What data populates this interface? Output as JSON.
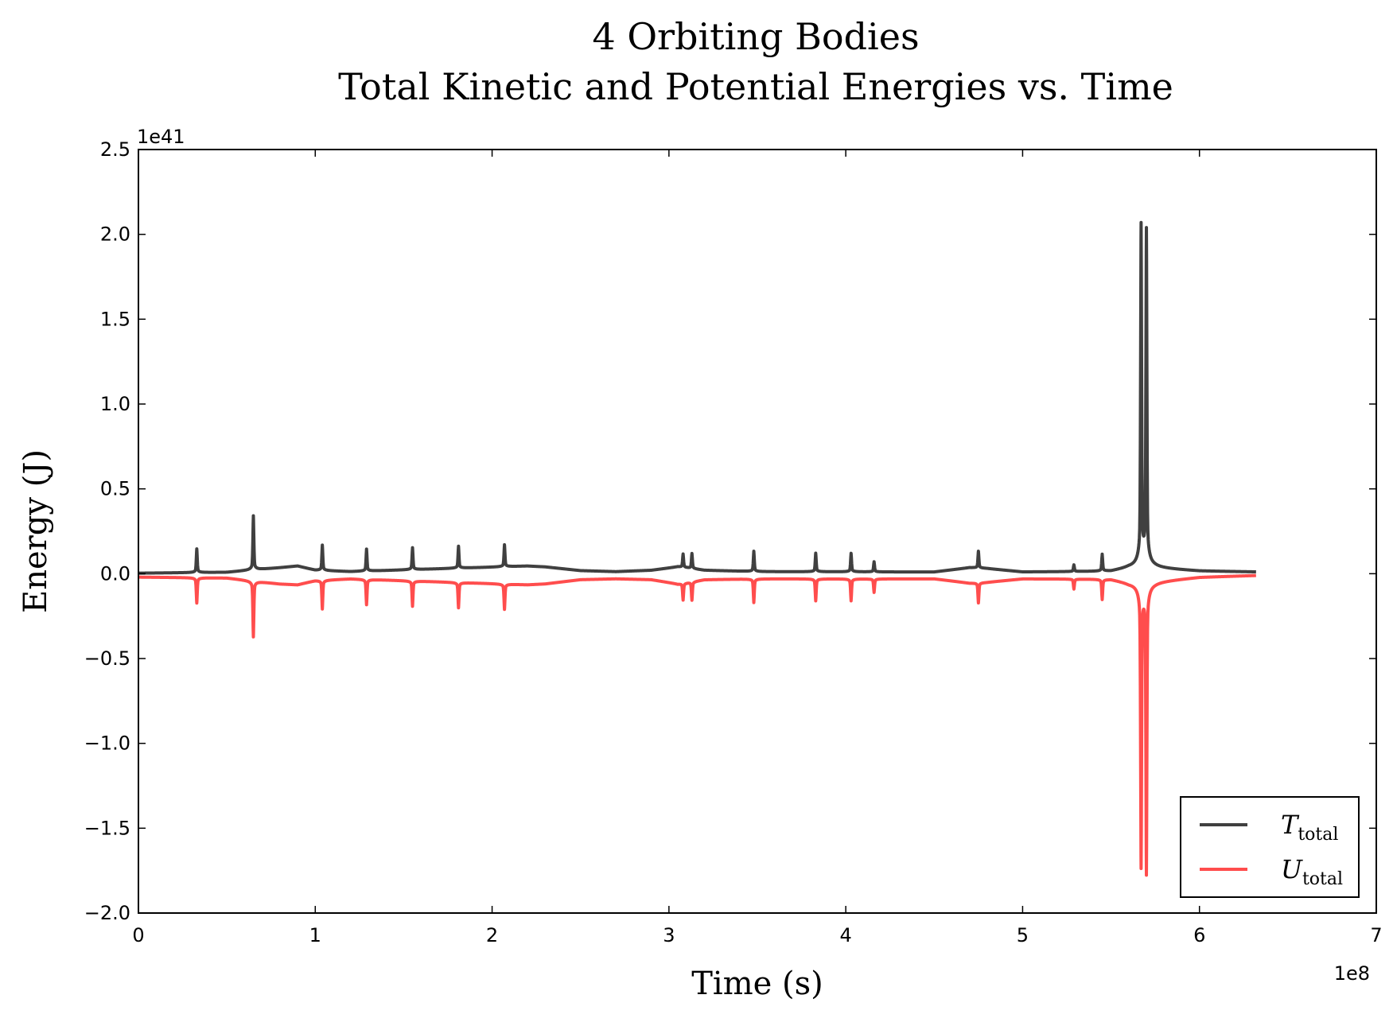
{
  "chart_data": {
    "type": "line",
    "title": "4 Orbiting Bodies",
    "subtitle": "Total Kinetic and Potential Energies vs. Time",
    "xlabel": "Time (s)",
    "ylabel": "Energy (J)",
    "x_offset_label": "1e8",
    "y_offset_label": "1e41",
    "xlim": [
      0,
      7
    ],
    "ylim": [
      -2.0,
      2.5
    ],
    "x_ticks": [
      "0",
      "1",
      "2",
      "3",
      "4",
      "5",
      "6",
      "7"
    ],
    "y_ticks": [
      "2.5",
      "2.0",
      "1.5",
      "1.0",
      "0.5",
      "0.0",
      "−0.5",
      "−1.0",
      "−1.5",
      "−2.0"
    ],
    "grid": false,
    "legend_position": "bottom-right",
    "x_end": 6.32,
    "series": [
      {
        "name": "T",
        "name_subscript": "total",
        "color": "#404040",
        "sign": 1,
        "baseline": [
          [
            0,
            0.003
          ],
          [
            0.5,
            0.008
          ],
          [
            0.8,
            0.035
          ],
          [
            0.9,
            0.045
          ],
          [
            1.0,
            0.02
          ],
          [
            1.2,
            0.012
          ],
          [
            2.2,
            0.045
          ],
          [
            2.3,
            0.04
          ],
          [
            2.5,
            0.018
          ],
          [
            2.7,
            0.012
          ],
          [
            2.9,
            0.02
          ],
          [
            3.05,
            0.04
          ],
          [
            3.2,
            0.02
          ],
          [
            3.5,
            0.012
          ],
          [
            4.2,
            0.01
          ],
          [
            4.5,
            0.01
          ],
          [
            4.7,
            0.035
          ],
          [
            4.8,
            0.03
          ],
          [
            5.0,
            0.01
          ],
          [
            5.5,
            0.012
          ],
          [
            5.6,
            0.03
          ],
          [
            5.75,
            0.03
          ],
          [
            6.0,
            0.015
          ],
          [
            6.32,
            0.01
          ]
        ],
        "spikes": [
          [
            0.33,
            0.14
          ],
          [
            0.65,
            0.32
          ],
          [
            1.04,
            0.15
          ],
          [
            1.29,
            0.13
          ],
          [
            1.55,
            0.13
          ],
          [
            1.81,
            0.13
          ],
          [
            2.07,
            0.13
          ],
          [
            3.08,
            0.08
          ],
          [
            3.13,
            0.09
          ],
          [
            3.48,
            0.12
          ],
          [
            3.83,
            0.11
          ],
          [
            4.03,
            0.11
          ],
          [
            4.16,
            0.06
          ],
          [
            4.75,
            0.1
          ],
          [
            5.29,
            0.04
          ],
          [
            5.45,
            0.1
          ],
          [
            5.67,
            2.04
          ],
          [
            5.7,
            2.01
          ]
        ]
      },
      {
        "name": "U",
        "name_subscript": "total",
        "color": "#ff4d4d",
        "sign": -1,
        "baseline": [
          [
            0,
            0.02
          ],
          [
            0.5,
            0.025
          ],
          [
            0.8,
            0.06
          ],
          [
            0.9,
            0.065
          ],
          [
            1.0,
            0.04
          ],
          [
            1.2,
            0.03
          ],
          [
            2.2,
            0.065
          ],
          [
            2.3,
            0.06
          ],
          [
            2.5,
            0.035
          ],
          [
            2.7,
            0.03
          ],
          [
            2.9,
            0.035
          ],
          [
            3.05,
            0.06
          ],
          [
            3.2,
            0.035
          ],
          [
            3.5,
            0.03
          ],
          [
            4.2,
            0.03
          ],
          [
            4.5,
            0.03
          ],
          [
            4.7,
            0.055
          ],
          [
            4.8,
            0.05
          ],
          [
            5.0,
            0.03
          ],
          [
            5.5,
            0.03
          ],
          [
            5.6,
            0.05
          ],
          [
            5.75,
            0.045
          ],
          [
            6.0,
            0.02
          ],
          [
            6.32,
            0.01
          ]
        ],
        "spikes": [
          [
            0.33,
            0.15
          ],
          [
            0.65,
            0.33
          ],
          [
            1.04,
            0.17
          ],
          [
            1.29,
            0.15
          ],
          [
            1.55,
            0.15
          ],
          [
            1.81,
            0.15
          ],
          [
            2.07,
            0.15
          ],
          [
            3.08,
            0.1
          ],
          [
            3.13,
            0.11
          ],
          [
            3.48,
            0.14
          ],
          [
            3.83,
            0.13
          ],
          [
            4.03,
            0.13
          ],
          [
            4.16,
            0.08
          ],
          [
            4.75,
            0.12
          ],
          [
            5.29,
            0.06
          ],
          [
            5.45,
            0.12
          ],
          [
            5.67,
            1.69
          ],
          [
            5.7,
            1.73
          ]
        ]
      }
    ]
  }
}
